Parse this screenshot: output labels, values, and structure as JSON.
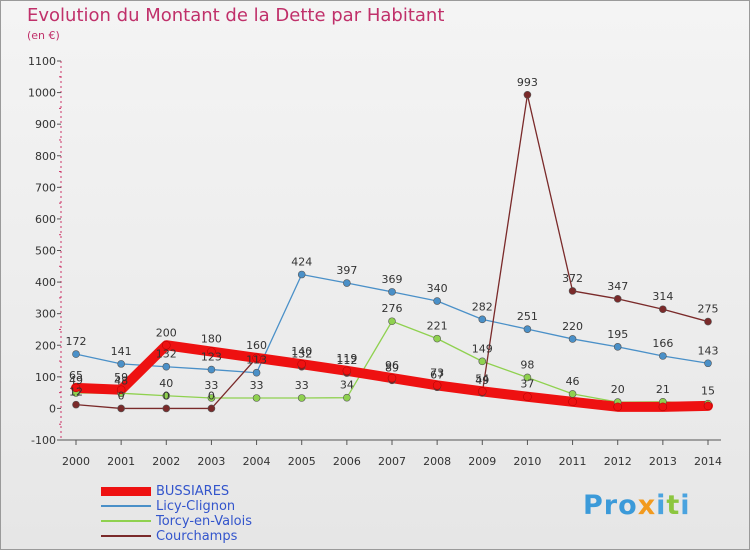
{
  "title": "Evolution du Montant de la Dette par Habitant",
  "subtitle": "(en €)",
  "logo": {
    "text": "Proxiti",
    "colors": [
      "#3b9ad9",
      "#f29a1e",
      "#4aa3df",
      "#8cc63f"
    ]
  },
  "chart_data": {
    "type": "line",
    "categories": [
      "2000",
      "2001",
      "2002",
      "2003",
      "2004",
      "2005",
      "2006",
      "2007",
      "2008",
      "2009",
      "2010",
      "2011",
      "2012",
      "2013",
      "2014"
    ],
    "ylim": [
      -100,
      1100
    ],
    "yticks": [
      -100,
      0,
      100,
      200,
      300,
      400,
      500,
      600,
      700,
      800,
      900,
      1000,
      1100
    ],
    "grid": false,
    "legend_position": "bottom-left",
    "series": [
      {
        "name": "BUSSIARES",
        "color": "#ee1111",
        "width": "thick",
        "values": [
          65,
          59,
          200,
          180,
          160,
          140,
          119,
          96,
          73,
          54,
          37,
          21,
          5,
          5,
          8
        ],
        "labels": [
          true,
          true,
          true,
          true,
          true,
          true,
          true,
          true,
          true,
          true,
          true,
          false,
          false,
          false,
          false
        ]
      },
      {
        "name": "Licy-Clignon",
        "color": "#4a90c8",
        "width": "thin",
        "values": [
          172,
          141,
          132,
          123,
          113,
          424,
          397,
          369,
          340,
          282,
          251,
          220,
          195,
          166,
          143
        ],
        "labels": [
          true,
          true,
          true,
          true,
          true,
          true,
          true,
          true,
          true,
          true,
          true,
          true,
          true,
          true,
          true
        ]
      },
      {
        "name": "Torcy-en-Valois",
        "color": "#8fd14f",
        "width": "thin",
        "values": [
          49,
          48,
          40,
          33,
          33,
          33,
          34,
          276,
          221,
          149,
          98,
          46,
          20,
          21,
          15
        ],
        "labels": [
          true,
          true,
          true,
          true,
          true,
          true,
          true,
          true,
          true,
          true,
          true,
          true,
          true,
          true,
          true
        ]
      },
      {
        "name": "Courchamps",
        "color": "#7a2a2a",
        "width": "thin",
        "values": [
          12,
          0,
          0,
          0,
          160,
          132,
          112,
          89,
          67,
          49,
          993,
          372,
          347,
          314,
          275
        ],
        "labels": [
          true,
          true,
          true,
          true,
          false,
          true,
          true,
          true,
          true,
          true,
          true,
          true,
          true,
          true,
          true
        ]
      }
    ]
  }
}
